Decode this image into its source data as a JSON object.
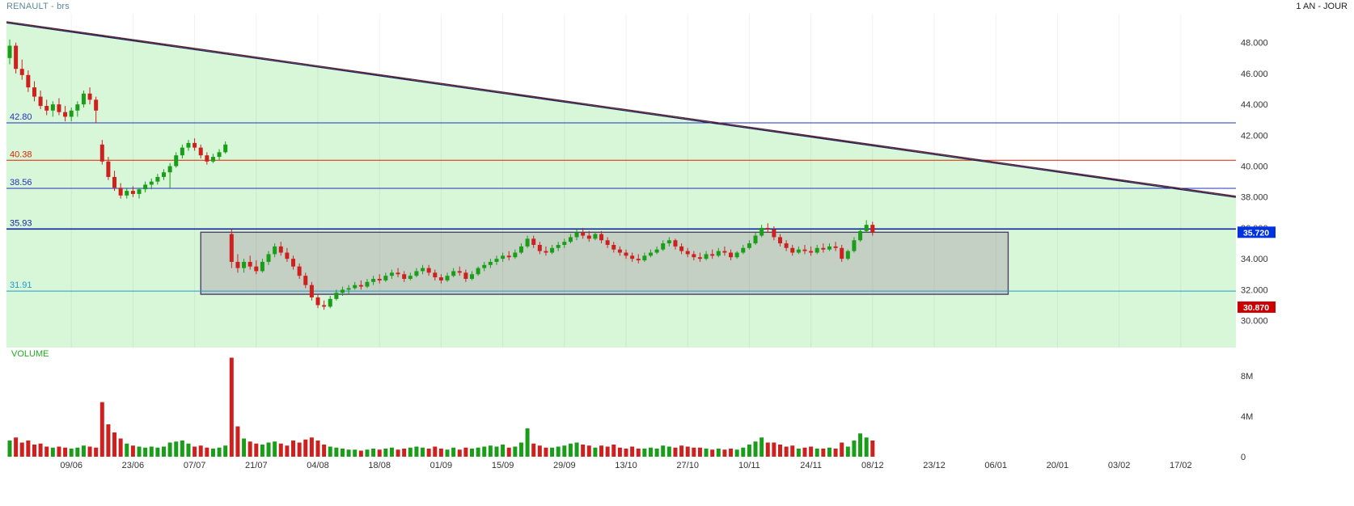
{
  "header": {
    "title": "RENAULT - brs",
    "timeframe": "1 AN - JOUR"
  },
  "volume_panel": {
    "label": "VOLUME",
    "unit": "M"
  },
  "chart_data": {
    "type": "candlestick",
    "title": "RENAULT - brs",
    "timeframe": "1 AN - JOUR",
    "xlabel": "",
    "ylabel": "",
    "ylim": [
      28.25,
      49.87
    ],
    "background_fill": "#d8f6d8",
    "candle_up_color": "#1a9e1a",
    "candle_down_color": "#cf2020",
    "grid_color": "rgba(0,0,0,0.055)",
    "axis_text_color": "#333333",
    "price_axis_ticks": [
      48,
      46,
      44,
      42,
      40,
      38,
      36,
      34,
      32,
      30
    ],
    "x_labels": [
      "09/06",
      "23/06",
      "07/07",
      "21/07",
      "04/08",
      "18/08",
      "01/09",
      "15/09",
      "29/09",
      "13/10",
      "27/10",
      "10/11",
      "24/11",
      "08/12",
      "23/12",
      "06/01",
      "20/01",
      "03/02",
      "17/02"
    ],
    "x_label_first_index": 10,
    "x_label_step": 10,
    "levels": [
      {
        "value": 42.8,
        "label": "42.80",
        "color": "#2233bb",
        "width": 1
      },
      {
        "value": 40.38,
        "label": "40.38",
        "color": "#dd2200",
        "width": 1
      },
      {
        "value": 38.56,
        "label": "38.56",
        "color": "#2233bb",
        "width": 1
      },
      {
        "value": 35.93,
        "label": "35.93",
        "color": "#10269e",
        "width": 1.6
      },
      {
        "value": 31.91,
        "label": "31.91",
        "color": "#2299cc",
        "width": 1
      }
    ],
    "badges": [
      {
        "value": "35.720",
        "price": 35.72,
        "bg": "#0033dd",
        "fg": "#ffffff"
      },
      {
        "value": "30.870",
        "price": 30.87,
        "bg": "#cc0000",
        "fg": "#ffffff"
      }
    ],
    "trendline": {
      "price_start": 49.3,
      "price_end": 38.0,
      "colors": [
        "#5a1f2a",
        "#1f1f5a"
      ]
    },
    "range_box": {
      "index_start": 31,
      "index_end": 162,
      "price_top": 35.72,
      "price_bottom": 31.7,
      "fill": "rgba(150,120,150,0.30)",
      "border": "#50406a"
    },
    "volume_axis_ticks": [
      {
        "label": "8M",
        "value": 8
      },
      {
        "label": "4M",
        "value": 4
      },
      {
        "label": "0",
        "value": 0
      }
    ],
    "candles": [
      [
        47.0,
        48.2,
        46.6,
        47.8,
        1.6
      ],
      [
        47.8,
        48.0,
        46.0,
        46.3,
        1.9
      ],
      [
        46.3,
        46.9,
        45.6,
        45.9,
        1.4
      ],
      [
        45.9,
        46.2,
        44.8,
        45.1,
        1.6
      ],
      [
        45.1,
        45.5,
        44.2,
        44.5,
        1.2
      ],
      [
        44.5,
        44.9,
        43.7,
        43.9,
        1.3
      ],
      [
        43.9,
        44.3,
        43.3,
        43.6,
        1.0
      ],
      [
        43.6,
        44.2,
        43.2,
        44.0,
        0.9
      ],
      [
        44.0,
        44.4,
        43.3,
        43.5,
        1.0
      ],
      [
        43.5,
        43.9,
        42.9,
        43.2,
        0.9
      ],
      [
        43.2,
        43.8,
        42.9,
        43.6,
        0.8
      ],
      [
        43.6,
        44.2,
        43.2,
        44.0,
        0.9
      ],
      [
        44.0,
        44.9,
        43.8,
        44.7,
        1.1
      ],
      [
        44.7,
        45.1,
        44.0,
        44.3,
        1.0
      ],
      [
        44.3,
        44.5,
        42.8,
        43.6,
        0.9
      ],
      [
        41.4,
        41.7,
        40.1,
        40.3,
        5.4
      ],
      [
        40.3,
        40.6,
        39.1,
        39.3,
        3.2
      ],
      [
        39.3,
        39.7,
        38.4,
        38.6,
        2.4
      ],
      [
        38.6,
        38.9,
        37.9,
        38.1,
        1.8
      ],
      [
        38.1,
        38.6,
        37.9,
        38.4,
        1.3
      ],
      [
        38.4,
        38.7,
        38.0,
        38.2,
        1.1
      ],
      [
        38.2,
        38.6,
        37.9,
        38.5,
        1.0
      ],
      [
        38.5,
        39.0,
        38.3,
        38.8,
        0.9
      ],
      [
        38.8,
        39.2,
        38.5,
        39.0,
        1.0
      ],
      [
        39.0,
        39.5,
        38.8,
        39.3,
        0.9
      ],
      [
        39.3,
        39.8,
        39.1,
        39.6,
        1.0
      ],
      [
        39.6,
        40.2,
        38.6,
        40.0,
        1.4
      ],
      [
        40.0,
        40.9,
        39.9,
        40.7,
        1.5
      ],
      [
        40.7,
        41.4,
        40.5,
        41.2,
        1.6
      ],
      [
        41.2,
        41.7,
        41.0,
        41.5,
        1.3
      ],
      [
        41.5,
        41.8,
        41.0,
        41.2,
        1.0
      ],
      [
        41.2,
        41.4,
        40.5,
        40.7,
        1.1
      ],
      [
        40.7,
        40.9,
        40.1,
        40.3,
        0.9
      ],
      [
        40.3,
        40.8,
        40.2,
        40.6,
        0.8
      ],
      [
        40.6,
        41.1,
        40.4,
        40.9,
        0.9
      ],
      [
        40.9,
        41.6,
        40.8,
        41.4,
        1.1
      ],
      [
        35.6,
        35.9,
        33.4,
        33.8,
        9.8
      ],
      [
        33.8,
        34.3,
        33.1,
        33.4,
        3.0
      ],
      [
        33.4,
        34.0,
        33.1,
        33.8,
        1.8
      ],
      [
        33.8,
        34.2,
        33.3,
        33.5,
        1.5
      ],
      [
        33.5,
        33.9,
        33.0,
        33.2,
        1.3
      ],
      [
        33.2,
        34.0,
        33.1,
        33.8,
        1.2
      ],
      [
        33.8,
        34.5,
        33.6,
        34.3,
        1.4
      ],
      [
        34.3,
        35.0,
        34.1,
        34.8,
        1.5
      ],
      [
        34.8,
        35.1,
        34.2,
        34.4,
        1.3
      ],
      [
        34.4,
        34.7,
        33.8,
        34.0,
        1.1
      ],
      [
        34.0,
        34.2,
        33.3,
        33.5,
        1.6
      ],
      [
        33.5,
        33.7,
        32.7,
        32.9,
        1.4
      ],
      [
        32.9,
        33.1,
        32.1,
        32.3,
        1.7
      ],
      [
        32.3,
        32.5,
        31.3,
        31.5,
        1.9
      ],
      [
        31.5,
        31.7,
        30.8,
        31.0,
        1.6
      ],
      [
        31.0,
        31.3,
        30.7,
        30.9,
        1.2
      ],
      [
        30.9,
        31.6,
        30.8,
        31.4,
        1.0
      ],
      [
        31.4,
        32.0,
        31.3,
        31.8,
        0.9
      ],
      [
        31.8,
        32.2,
        31.6,
        32.0,
        0.8
      ],
      [
        32.0,
        32.3,
        31.7,
        32.1,
        0.7
      ],
      [
        32.1,
        32.5,
        32.0,
        32.3,
        0.7
      ],
      [
        32.3,
        32.6,
        32.0,
        32.2,
        0.6
      ],
      [
        32.2,
        32.7,
        32.1,
        32.5,
        0.7
      ],
      [
        32.5,
        32.9,
        32.3,
        32.7,
        0.8
      ],
      [
        32.7,
        33.0,
        32.4,
        32.6,
        0.7
      ],
      [
        32.6,
        33.1,
        32.5,
        32.9,
        0.8
      ],
      [
        32.9,
        33.3,
        32.7,
        33.1,
        0.9
      ],
      [
        33.1,
        33.4,
        32.8,
        33.0,
        0.7
      ],
      [
        33.0,
        33.2,
        32.5,
        32.7,
        0.8
      ],
      [
        32.7,
        33.1,
        32.6,
        32.9,
        0.9
      ],
      [
        32.9,
        33.4,
        32.8,
        33.2,
        1.0
      ],
      [
        33.2,
        33.6,
        33.0,
        33.4,
        0.9
      ],
      [
        33.4,
        33.6,
        32.9,
        33.1,
        0.8
      ],
      [
        33.1,
        33.3,
        32.6,
        32.8,
        1.0
      ],
      [
        32.8,
        33.0,
        32.4,
        32.6,
        0.8
      ],
      [
        32.6,
        33.1,
        32.5,
        32.9,
        0.7
      ],
      [
        32.9,
        33.4,
        32.8,
        33.2,
        0.9
      ],
      [
        33.2,
        33.5,
        32.9,
        33.1,
        0.7
      ],
      [
        33.1,
        33.3,
        32.5,
        32.7,
        0.9
      ],
      [
        32.7,
        33.2,
        32.6,
        33.0,
        0.8
      ],
      [
        33.0,
        33.5,
        32.9,
        33.4,
        0.9
      ],
      [
        33.4,
        33.8,
        33.2,
        33.6,
        1.0
      ],
      [
        33.6,
        34.0,
        33.4,
        33.8,
        1.1
      ],
      [
        33.8,
        34.2,
        33.6,
        34.0,
        1.0
      ],
      [
        34.0,
        34.4,
        33.8,
        34.2,
        1.2
      ],
      [
        34.2,
        34.5,
        33.9,
        34.1,
        0.9
      ],
      [
        34.1,
        34.6,
        34.0,
        34.4,
        1.0
      ],
      [
        34.4,
        35.0,
        34.3,
        34.8,
        1.4
      ],
      [
        34.8,
        35.5,
        34.7,
        35.3,
        2.8
      ],
      [
        35.3,
        35.5,
        34.7,
        34.9,
        1.3
      ],
      [
        34.9,
        35.1,
        34.3,
        34.5,
        1.1
      ],
      [
        34.5,
        34.8,
        34.2,
        34.4,
        0.9
      ],
      [
        34.4,
        34.9,
        34.3,
        34.7,
        0.9
      ],
      [
        34.7,
        35.1,
        34.5,
        34.9,
        1.0
      ],
      [
        34.9,
        35.3,
        34.7,
        35.1,
        1.1
      ],
      [
        35.1,
        35.6,
        35.0,
        35.4,
        1.3
      ],
      [
        35.4,
        35.9,
        35.2,
        35.7,
        1.4
      ],
      [
        35.7,
        36.0,
        35.3,
        35.5,
        1.2
      ],
      [
        35.5,
        35.8,
        35.1,
        35.3,
        1.1
      ],
      [
        35.3,
        35.7,
        35.2,
        35.6,
        0.9
      ],
      [
        35.6,
        35.8,
        35.0,
        35.2,
        1.1
      ],
      [
        35.2,
        35.4,
        34.7,
        34.9,
        1.0
      ],
      [
        34.9,
        35.1,
        34.4,
        34.6,
        1.2
      ],
      [
        34.6,
        34.8,
        34.2,
        34.4,
        0.9
      ],
      [
        34.4,
        34.6,
        34.0,
        34.2,
        0.8
      ],
      [
        34.2,
        34.4,
        33.8,
        34.0,
        1.0
      ],
      [
        34.0,
        34.3,
        33.7,
        33.9,
        0.8
      ],
      [
        33.9,
        34.4,
        33.8,
        34.2,
        0.8
      ],
      [
        34.2,
        34.6,
        34.1,
        34.4,
        0.9
      ],
      [
        34.4,
        34.8,
        34.3,
        34.6,
        0.8
      ],
      [
        34.6,
        35.2,
        34.5,
        35.0,
        1.1
      ],
      [
        35.0,
        35.4,
        34.8,
        35.2,
        1.0
      ],
      [
        35.2,
        35.3,
        34.6,
        34.8,
        0.9
      ],
      [
        34.8,
        35.0,
        34.3,
        34.5,
        1.1
      ],
      [
        34.5,
        34.7,
        34.1,
        34.3,
        1.0
      ],
      [
        34.3,
        34.5,
        33.9,
        34.1,
        0.9
      ],
      [
        34.1,
        34.4,
        33.8,
        34.0,
        0.9
      ],
      [
        34.0,
        34.5,
        33.9,
        34.3,
        0.8
      ],
      [
        34.3,
        34.6,
        34.0,
        34.2,
        0.7
      ],
      [
        34.2,
        34.7,
        34.1,
        34.5,
        0.8
      ],
      [
        34.5,
        34.8,
        34.2,
        34.4,
        0.7
      ],
      [
        34.4,
        34.6,
        33.9,
        34.1,
        0.8
      ],
      [
        34.1,
        34.5,
        34.0,
        34.4,
        0.7
      ],
      [
        34.4,
        34.9,
        34.3,
        34.7,
        0.9
      ],
      [
        34.7,
        35.2,
        34.6,
        35.0,
        1.2
      ],
      [
        35.0,
        35.7,
        34.9,
        35.5,
        1.5
      ],
      [
        35.5,
        36.2,
        35.4,
        36.0,
        1.9
      ],
      [
        36.0,
        36.3,
        35.7,
        35.9,
        1.4
      ],
      [
        35.9,
        36.1,
        35.2,
        35.4,
        1.4
      ],
      [
        35.4,
        35.6,
        34.8,
        35.0,
        1.2
      ],
      [
        35.0,
        35.2,
        34.5,
        34.7,
        1.0
      ],
      [
        34.7,
        34.9,
        34.2,
        34.4,
        1.1
      ],
      [
        34.4,
        34.8,
        34.3,
        34.6,
        0.8
      ],
      [
        34.6,
        34.9,
        34.3,
        34.5,
        0.9
      ],
      [
        34.5,
        34.8,
        34.2,
        34.4,
        1.0
      ],
      [
        34.4,
        34.9,
        34.3,
        34.7,
        0.8
      ],
      [
        34.7,
        35.0,
        34.4,
        34.6,
        0.8
      ],
      [
        34.6,
        35.0,
        34.5,
        34.8,
        0.9
      ],
      [
        34.8,
        35.1,
        34.5,
        34.7,
        0.8
      ],
      [
        34.7,
        34.9,
        33.8,
        34.0,
        1.4
      ],
      [
        34.0,
        34.6,
        33.9,
        34.5,
        1.0
      ],
      [
        34.5,
        35.4,
        34.4,
        35.2,
        1.6
      ],
      [
        35.2,
        36.0,
        35.1,
        35.8,
        2.3
      ],
      [
        35.8,
        36.5,
        35.7,
        36.2,
        1.9
      ],
      [
        36.2,
        36.4,
        35.5,
        35.72,
        1.6
      ]
    ]
  }
}
